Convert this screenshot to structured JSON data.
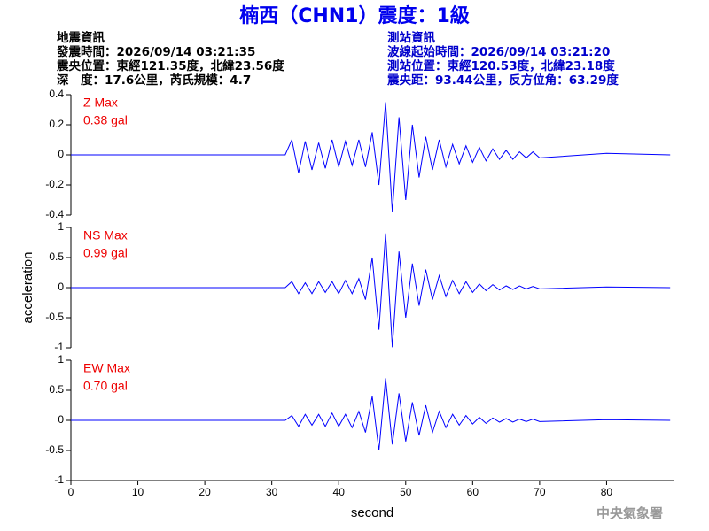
{
  "header": {
    "title": "楠西（CHN1）震度：1級",
    "left_info": [
      "地震資訊",
      "發震時間：2026/09/14 03:21:35",
      "震央位置：東經121.35度，北緯23.56度",
      "深　度：17.6公里，芮氏規模：4.7"
    ],
    "right_info": [
      "測站資訊",
      "波線起始時間：2026/09/14 03:21:20",
      "測站位置：東經120.53度，北緯23.18度",
      "震央距：93.44公里，反方位角：63.29度"
    ],
    "footer": "中央氣象署"
  },
  "chart_data": [
    {
      "type": "line",
      "annotation": [
        "Z Max",
        "0.38 gal"
      ],
      "color": "#0000ff",
      "x": [
        0,
        32,
        33,
        34,
        35,
        36,
        37,
        38,
        39,
        40,
        41,
        42,
        43,
        44,
        45,
        46,
        47,
        48,
        49,
        50,
        51,
        52,
        53,
        54,
        55,
        56,
        57,
        58,
        59,
        60,
        61,
        62,
        63,
        64,
        65,
        66,
        67,
        68,
        69,
        70,
        80,
        89.5
      ],
      "values": [
        0,
        0,
        0.1,
        -0.12,
        0.09,
        -0.1,
        0.08,
        -0.09,
        0.1,
        -0.08,
        0.09,
        -0.07,
        0.1,
        -0.08,
        0.15,
        -0.2,
        0.35,
        -0.38,
        0.25,
        -0.3,
        0.2,
        -0.15,
        0.12,
        -0.1,
        0.1,
        -0.08,
        0.07,
        -0.06,
        0.06,
        -0.05,
        0.05,
        -0.04,
        0.04,
        -0.03,
        0.03,
        -0.03,
        0.02,
        -0.02,
        0.02,
        -0.02,
        0.01,
        0
      ],
      "xlim": [
        0,
        90
      ],
      "ylim": [
        -0.4,
        0.4
      ],
      "yticks": [
        -0.4,
        -0.2,
        0,
        0.2,
        0.4
      ]
    },
    {
      "type": "line",
      "annotation": [
        "NS Max",
        "0.99 gal"
      ],
      "color": "#0000ff",
      "ylabel": "acceleration",
      "x": [
        0,
        32,
        33,
        34,
        35,
        36,
        37,
        38,
        39,
        40,
        41,
        42,
        43,
        44,
        45,
        46,
        47,
        48,
        49,
        50,
        51,
        52,
        53,
        54,
        55,
        56,
        57,
        58,
        59,
        60,
        61,
        62,
        63,
        64,
        65,
        66,
        67,
        68,
        69,
        70,
        80,
        89.5
      ],
      "values": [
        0,
        0,
        0.1,
        -0.1,
        0.08,
        -0.1,
        0.1,
        -0.08,
        0.1,
        -0.1,
        0.12,
        -0.1,
        0.15,
        -0.2,
        0.5,
        -0.7,
        0.9,
        -0.99,
        0.6,
        -0.5,
        0.4,
        -0.3,
        0.3,
        -0.2,
        0.2,
        -0.15,
        0.12,
        -0.1,
        0.1,
        -0.08,
        0.06,
        -0.05,
        0.05,
        -0.04,
        0.03,
        -0.03,
        0.03,
        -0.02,
        0.02,
        -0.02,
        0.01,
        0
      ],
      "xlim": [
        0,
        90
      ],
      "ylim": [
        -1,
        1
      ],
      "yticks": [
        -1,
        -0.5,
        0,
        0.5,
        1
      ]
    },
    {
      "type": "line",
      "annotation": [
        "EW Max",
        "0.70 gal"
      ],
      "color": "#0000ff",
      "xlabel": "second",
      "x": [
        0,
        32,
        33,
        34,
        35,
        36,
        37,
        38,
        39,
        40,
        41,
        42,
        43,
        44,
        45,
        46,
        47,
        48,
        49,
        50,
        51,
        52,
        53,
        54,
        55,
        56,
        57,
        58,
        59,
        60,
        61,
        62,
        63,
        64,
        65,
        66,
        67,
        68,
        69,
        70,
        80,
        89.5
      ],
      "values": [
        0,
        0,
        0.08,
        -0.1,
        0.1,
        -0.08,
        0.1,
        -0.1,
        0.12,
        -0.1,
        0.1,
        -0.12,
        0.15,
        -0.2,
        0.4,
        -0.5,
        0.7,
        -0.4,
        0.45,
        -0.35,
        0.3,
        -0.25,
        0.25,
        -0.2,
        0.15,
        -0.12,
        0.1,
        -0.08,
        0.08,
        -0.06,
        0.05,
        -0.05,
        0.04,
        -0.03,
        0.03,
        -0.03,
        0.02,
        -0.02,
        0.02,
        -0.02,
        0.01,
        0
      ],
      "xlim": [
        0,
        90
      ],
      "ylim": [
        -1,
        1
      ],
      "yticks": [
        -1,
        -0.5,
        0,
        0.5,
        1
      ],
      "xticks": [
        0,
        10,
        20,
        30,
        40,
        50,
        60,
        70,
        80
      ]
    }
  ]
}
